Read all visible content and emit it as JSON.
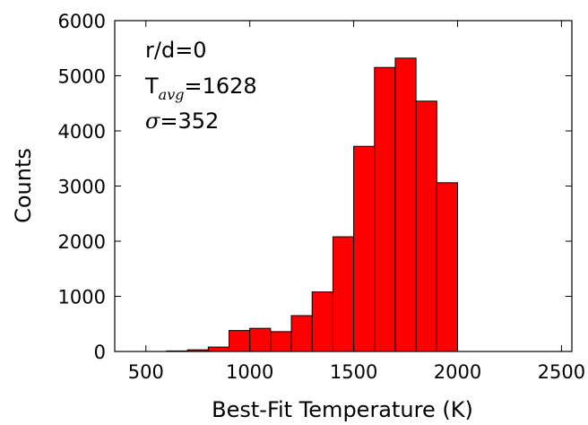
{
  "chart_data": {
    "type": "bar",
    "xlabel": "Best-Fit Temperature (K)",
    "ylabel": "Counts",
    "xlim": [
      350,
      2550
    ],
    "ylim": [
      0,
      6000
    ],
    "x_ticks": [
      500,
      1000,
      1500,
      2000,
      2500
    ],
    "y_ticks": [
      0,
      1000,
      2000,
      3000,
      4000,
      5000,
      6000
    ],
    "bin_width": 100,
    "bins": [
      {
        "start": 600,
        "end": 700,
        "value": 10
      },
      {
        "start": 700,
        "end": 800,
        "value": 30
      },
      {
        "start": 800,
        "end": 900,
        "value": 80
      },
      {
        "start": 900,
        "end": 1000,
        "value": 380
      },
      {
        "start": 1000,
        "end": 1100,
        "value": 420
      },
      {
        "start": 1100,
        "end": 1200,
        "value": 360
      },
      {
        "start": 1200,
        "end": 1300,
        "value": 650
      },
      {
        "start": 1300,
        "end": 1400,
        "value": 1080
      },
      {
        "start": 1400,
        "end": 1500,
        "value": 2080
      },
      {
        "start": 1500,
        "end": 1600,
        "value": 3720
      },
      {
        "start": 1600,
        "end": 1700,
        "value": 5150
      },
      {
        "start": 1700,
        "end": 1800,
        "value": 5320
      },
      {
        "start": 1800,
        "end": 1900,
        "value": 4540
      },
      {
        "start": 1900,
        "end": 2000,
        "value": 3060
      }
    ],
    "bar_color": "#ff0000",
    "bar_edge_color": "#000000",
    "annotations": {
      "line1": "r/d=0",
      "line2_prefix": "T",
      "line2_sub": "avg",
      "line2_suffix": "=1628",
      "line3_symbol": "σ",
      "line3_suffix": "=352"
    }
  }
}
